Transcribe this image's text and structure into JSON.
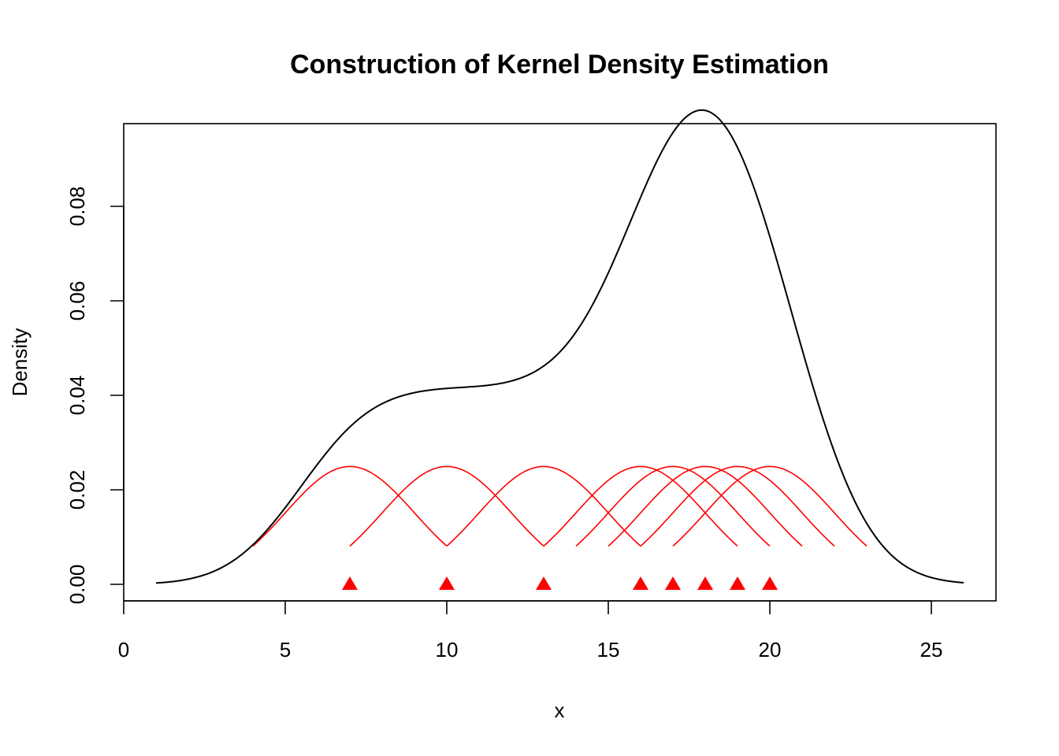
{
  "chart_data": {
    "type": "line",
    "title": "Construction of Kernel Density Estimation",
    "xlabel": "x",
    "ylabel": "Density",
    "xlim": [
      0,
      27
    ],
    "ylim": [
      -0.0035,
      0.0975
    ],
    "x_ticks": [
      0,
      5,
      10,
      15,
      20,
      25
    ],
    "x_tick_labels": [
      "0",
      "5",
      "10",
      "15",
      "20",
      "25"
    ],
    "y_ticks": [
      0,
      0.02,
      0.04,
      0.06,
      0.08
    ],
    "y_tick_labels": [
      "0.00",
      "0.02",
      "0.04",
      "0.06",
      "0.08"
    ],
    "grid": false,
    "legend": "none",
    "data_points": [
      7,
      10,
      13,
      16,
      17,
      18,
      19,
      20
    ],
    "kernel": {
      "type": "gaussian",
      "bandwidth": 2,
      "weight": 0.125,
      "range_sd": 1.5,
      "color": "#ff0000"
    },
    "series": [
      {
        "role": "kde",
        "color": "#000000",
        "x_range": [
          1,
          26
        ]
      },
      {
        "role": "kernels",
        "color": "#ff0000"
      },
      {
        "role": "points",
        "marker": "triangle",
        "color": "#ff0000"
      }
    ]
  }
}
